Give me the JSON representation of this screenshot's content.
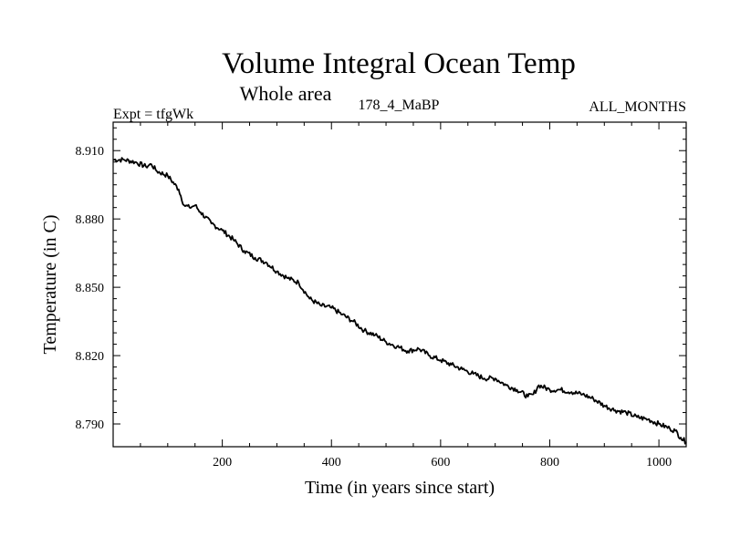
{
  "chart_data": {
    "type": "line",
    "title": "Volume Integral Ocean Temp",
    "subtitle": "Whole area",
    "header_left": "Expt = tfgWk",
    "header_center": "178_4_MaBP",
    "header_right": "ALL_MONTHS",
    "xlabel": "Time (in years since start)",
    "ylabel": "Temperature (in C)",
    "xlim": [
      0,
      1050
    ],
    "ylim": [
      8.78,
      8.9225
    ],
    "x_ticks": [
      200,
      400,
      600,
      800,
      1000
    ],
    "x_tick_labels": [
      "200",
      "400",
      "600",
      "800",
      "1000"
    ],
    "y_ticks": [
      8.79,
      8.82,
      8.85,
      8.88,
      8.91
    ],
    "y_tick_labels": [
      "8.790",
      "8.820",
      "8.850",
      "8.880",
      "8.910"
    ],
    "grid": false,
    "series": [
      {
        "name": "Volume Integral Ocean Temp",
        "color": "#000000",
        "x": [
          0,
          20,
          40,
          60,
          70,
          80,
          100,
          120,
          130,
          140,
          150,
          160,
          180,
          200,
          220,
          240,
          260,
          280,
          300,
          320,
          340,
          360,
          380,
          400,
          420,
          440,
          460,
          480,
          500,
          520,
          540,
          560,
          580,
          600,
          620,
          640,
          660,
          680,
          700,
          720,
          740,
          760,
          770,
          780,
          800,
          820,
          840,
          860,
          880,
          900,
          920,
          940,
          960,
          980,
          1000,
          1020,
          1030,
          1040,
          1050
        ],
        "y": [
          8.906,
          8.906,
          8.905,
          8.903,
          8.904,
          8.901,
          8.899,
          8.893,
          8.886,
          8.885,
          8.886,
          8.883,
          8.878,
          8.875,
          8.871,
          8.866,
          8.863,
          8.861,
          8.857,
          8.854,
          8.852,
          8.845,
          8.842,
          8.841,
          8.838,
          8.835,
          8.831,
          8.829,
          8.826,
          8.824,
          8.822,
          8.823,
          8.82,
          8.818,
          8.816,
          8.814,
          8.812,
          8.81,
          8.81,
          8.807,
          8.805,
          8.802,
          8.803,
          8.807,
          8.805,
          8.805,
          8.804,
          8.803,
          8.801,
          8.798,
          8.796,
          8.795,
          8.793,
          8.792,
          8.79,
          8.788,
          8.787,
          8.784,
          8.782
        ]
      }
    ]
  }
}
